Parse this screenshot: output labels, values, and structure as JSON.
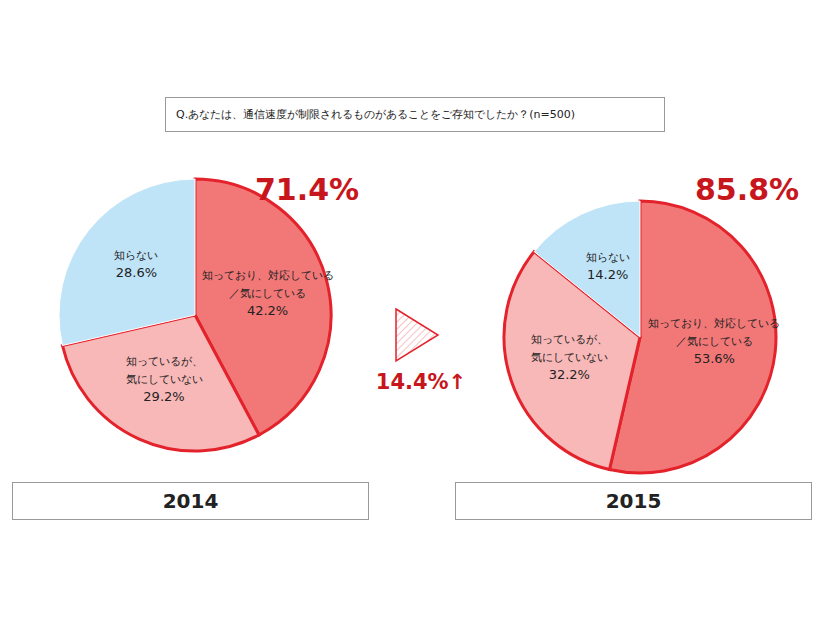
{
  "title": "Q.あなたは、通信速度が制限されるものがあることをご存知でしたか？(n=500)",
  "annotation": "14.4%↑",
  "chart_data": [
    {
      "type": "pie",
      "title": "2014",
      "annotation": "71.4%",
      "categories": [
        "知っており、対応している／気にしている",
        "知っているが、気にしていない",
        "知らない"
      ],
      "values": [
        42.2,
        29.2,
        28.6
      ],
      "value_labels": [
        "42.2%",
        "29.2%",
        "28.6%"
      ],
      "colors": [
        "#f27878",
        "#f8b8b8",
        "#bfe4f8"
      ],
      "data_labels": true
    },
    {
      "type": "pie",
      "title": "2015",
      "annotation": "85.8%",
      "categories": [
        "知っており、対応している／気にしている",
        "知っているが、気にしていない",
        "知らない"
      ],
      "values": [
        53.6,
        32.2,
        14.2
      ],
      "value_labels": [
        "53.6%",
        "32.2%",
        "14.2%"
      ],
      "colors": [
        "#f27878",
        "#f8b8b8",
        "#bfe4f8"
      ],
      "data_labels": true
    }
  ]
}
